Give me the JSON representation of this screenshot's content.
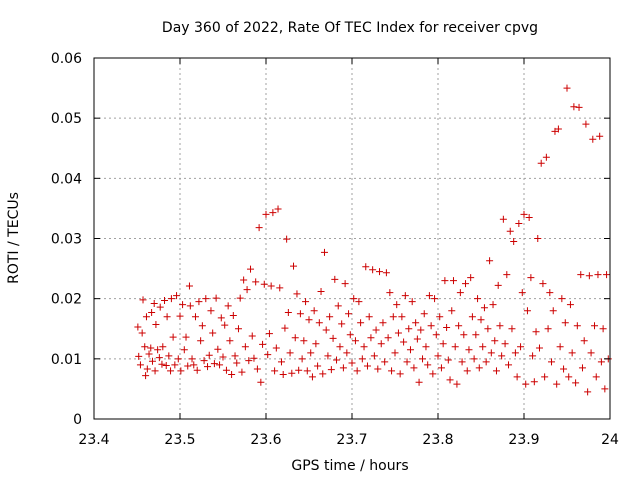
{
  "chart_data": {
    "type": "scatter",
    "title": "Day 360 of 2022, Rate Of TEC Index for receiver cpvg",
    "xlabel": "GPS time / hours",
    "ylabel": "ROTI / TECUs",
    "xlim": [
      23.4,
      24.0
    ],
    "ylim": [
      0,
      0.06
    ],
    "xticks": [
      "23.4",
      "23.5",
      "23.6",
      "23.7",
      "23.8",
      "23.9",
      "24"
    ],
    "yticks": [
      "0",
      "0.01",
      "0.02",
      "0.03",
      "0.04",
      "0.05",
      "0.06"
    ],
    "grid": true,
    "marker": "plus",
    "color": "#cc0000",
    "series": [
      {
        "points": [
          [
            23.451,
            0.0153
          ],
          [
            23.452,
            0.0104
          ],
          [
            23.454,
            0.009
          ],
          [
            23.456,
            0.0143
          ],
          [
            23.457,
            0.0198
          ],
          [
            23.459,
            0.012
          ],
          [
            23.46,
            0.0072
          ],
          [
            23.461,
            0.017
          ],
          [
            23.462,
            0.0083
          ],
          [
            23.464,
            0.0108
          ],
          [
            23.466,
            0.0118
          ],
          [
            23.467,
            0.0177
          ],
          [
            23.468,
            0.0096
          ],
          [
            23.47,
            0.0192
          ],
          [
            23.471,
            0.008
          ],
          [
            23.472,
            0.0157
          ],
          [
            23.474,
            0.0115
          ],
          [
            23.476,
            0.0102
          ],
          [
            23.477,
            0.0186
          ],
          [
            23.479,
            0.0091
          ],
          [
            23.48,
            0.012
          ],
          [
            23.482,
            0.0197
          ],
          [
            23.484,
            0.0089
          ],
          [
            23.485,
            0.017
          ],
          [
            23.487,
            0.0105
          ],
          [
            23.489,
            0.008
          ],
          [
            23.49,
            0.02
          ],
          [
            23.492,
            0.0136
          ],
          [
            23.494,
            0.009
          ],
          [
            23.496,
            0.0205
          ],
          [
            23.498,
            0.01
          ],
          [
            23.5,
            0.0171
          ],
          [
            23.501,
            0.008
          ],
          [
            23.503,
            0.019
          ],
          [
            23.505,
            0.0115
          ],
          [
            23.507,
            0.0136
          ],
          [
            23.509,
            0.0088
          ],
          [
            23.511,
            0.0221
          ],
          [
            23.512,
            0.0188
          ],
          [
            23.514,
            0.01
          ],
          [
            23.516,
            0.009
          ],
          [
            23.518,
            0.017
          ],
          [
            23.52,
            0.0081
          ],
          [
            23.522,
            0.0195
          ],
          [
            23.524,
            0.013
          ],
          [
            23.526,
            0.0155
          ],
          [
            23.528,
            0.0097
          ],
          [
            23.53,
            0.02
          ],
          [
            23.532,
            0.0087
          ],
          [
            23.534,
            0.0106
          ],
          [
            23.536,
            0.018
          ],
          [
            23.538,
            0.0143
          ],
          [
            23.54,
            0.0092
          ],
          [
            23.542,
            0.0201
          ],
          [
            23.544,
            0.0116
          ],
          [
            23.546,
            0.009
          ],
          [
            23.548,
            0.0168
          ],
          [
            23.55,
            0.0103
          ],
          [
            23.552,
            0.0156
          ],
          [
            23.554,
            0.0081
          ],
          [
            23.556,
            0.0188
          ],
          [
            23.558,
            0.013
          ],
          [
            23.56,
            0.0074
          ],
          [
            23.562,
            0.0172
          ],
          [
            23.564,
            0.0105
          ],
          [
            23.566,
            0.0093
          ],
          [
            23.568,
            0.015
          ],
          [
            23.57,
            0.0201
          ],
          [
            23.572,
            0.0078
          ],
          [
            23.574,
            0.0231
          ],
          [
            23.576,
            0.012
          ],
          [
            23.578,
            0.0215
          ],
          [
            23.58,
            0.0097
          ],
          [
            23.582,
            0.0249
          ],
          [
            23.584,
            0.0138
          ],
          [
            23.586,
            0.0101
          ],
          [
            23.588,
            0.0228
          ],
          [
            23.59,
            0.0083
          ],
          [
            23.592,
            0.0318
          ],
          [
            23.594,
            0.0061
          ],
          [
            23.596,
            0.0124
          ],
          [
            23.598,
            0.0224
          ],
          [
            23.6,
            0.034
          ],
          [
            23.602,
            0.0107
          ],
          [
            23.604,
            0.0142
          ],
          [
            23.606,
            0.0221
          ],
          [
            23.608,
            0.0343
          ],
          [
            23.61,
            0.008
          ],
          [
            23.612,
            0.0118
          ],
          [
            23.614,
            0.0349
          ],
          [
            23.616,
            0.0218
          ],
          [
            23.618,
            0.0095
          ],
          [
            23.62,
            0.0074
          ],
          [
            23.622,
            0.0151
          ],
          [
            23.624,
            0.0299
          ],
          [
            23.626,
            0.0177
          ],
          [
            23.628,
            0.011
          ],
          [
            23.63,
            0.0076
          ],
          [
            23.632,
            0.0254
          ],
          [
            23.634,
            0.0135
          ],
          [
            23.636,
            0.0208
          ],
          [
            23.638,
            0.0081
          ],
          [
            23.64,
            0.0175
          ],
          [
            23.642,
            0.01
          ],
          [
            23.644,
            0.013
          ],
          [
            23.646,
            0.0195
          ],
          [
            23.648,
            0.008
          ],
          [
            23.65,
            0.0165
          ],
          [
            23.652,
            0.011
          ],
          [
            23.654,
            0.007
          ],
          [
            23.656,
            0.018
          ],
          [
            23.658,
            0.0125
          ],
          [
            23.66,
            0.0088
          ],
          [
            23.662,
            0.016
          ],
          [
            23.664,
            0.0212
          ],
          [
            23.666,
            0.0075
          ],
          [
            23.668,
            0.0277
          ],
          [
            23.67,
            0.0148
          ],
          [
            23.672,
            0.0105
          ],
          [
            23.674,
            0.017
          ],
          [
            23.676,
            0.0082
          ],
          [
            23.678,
            0.0134
          ],
          [
            23.68,
            0.0232
          ],
          [
            23.682,
            0.0098
          ],
          [
            23.684,
            0.0188
          ],
          [
            23.686,
            0.012
          ],
          [
            23.688,
            0.0158
          ],
          [
            23.69,
            0.0085
          ],
          [
            23.692,
            0.0225
          ],
          [
            23.694,
            0.011
          ],
          [
            23.696,
            0.0175
          ],
          [
            23.698,
            0.014
          ],
          [
            23.7,
            0.0093
          ],
          [
            23.702,
            0.02
          ],
          [
            23.704,
            0.013
          ],
          [
            23.706,
            0.008
          ],
          [
            23.708,
            0.0195
          ],
          [
            23.71,
            0.016
          ],
          [
            23.712,
            0.01
          ],
          [
            23.714,
            0.012
          ],
          [
            23.716,
            0.0253
          ],
          [
            23.718,
            0.0088
          ],
          [
            23.72,
            0.017
          ],
          [
            23.722,
            0.0135
          ],
          [
            23.724,
            0.0248
          ],
          [
            23.726,
            0.0105
          ],
          [
            23.728,
            0.0148
          ],
          [
            23.73,
            0.0083
          ],
          [
            23.732,
            0.0245
          ],
          [
            23.734,
            0.0125
          ],
          [
            23.736,
            0.016
          ],
          [
            23.738,
            0.0095
          ],
          [
            23.74,
            0.0243
          ],
          [
            23.742,
            0.0135
          ],
          [
            23.744,
            0.021
          ],
          [
            23.746,
            0.008
          ],
          [
            23.748,
            0.017
          ],
          [
            23.75,
            0.011
          ],
          [
            23.752,
            0.019
          ],
          [
            23.754,
            0.0143
          ],
          [
            23.756,
            0.0075
          ],
          [
            23.758,
            0.017
          ],
          [
            23.76,
            0.0128
          ],
          [
            23.762,
            0.0205
          ],
          [
            23.764,
            0.0095
          ],
          [
            23.766,
            0.015
          ],
          [
            23.768,
            0.0115
          ],
          [
            23.77,
            0.0195
          ],
          [
            23.772,
            0.0085
          ],
          [
            23.774,
            0.016
          ],
          [
            23.776,
            0.0133
          ],
          [
            23.778,
            0.0061
          ],
          [
            23.78,
            0.0148
          ],
          [
            23.782,
            0.01
          ],
          [
            23.784,
            0.0175
          ],
          [
            23.786,
            0.012
          ],
          [
            23.788,
            0.009
          ],
          [
            23.79,
            0.0205
          ],
          [
            23.792,
            0.0155
          ],
          [
            23.794,
            0.0075
          ],
          [
            23.796,
            0.02
          ],
          [
            23.798,
            0.014
          ],
          [
            23.8,
            0.0105
          ],
          [
            23.802,
            0.017
          ],
          [
            23.804,
            0.0085
          ],
          [
            23.806,
            0.0125
          ],
          [
            23.808,
            0.023
          ],
          [
            23.81,
            0.0152
          ],
          [
            23.812,
            0.0098
          ],
          [
            23.814,
            0.0065
          ],
          [
            23.816,
            0.018
          ],
          [
            23.818,
            0.023
          ],
          [
            23.82,
            0.012
          ],
          [
            23.822,
            0.0058
          ],
          [
            23.824,
            0.0155
          ],
          [
            23.826,
            0.021
          ],
          [
            23.828,
            0.0095
          ],
          [
            23.83,
            0.014
          ],
          [
            23.832,
            0.0225
          ],
          [
            23.834,
            0.008
          ],
          [
            23.836,
            0.0115
          ],
          [
            23.838,
            0.0235
          ],
          [
            23.84,
            0.017
          ],
          [
            23.842,
            0.01
          ],
          [
            23.844,
            0.014
          ],
          [
            23.846,
            0.02
          ],
          [
            23.848,
            0.0085
          ],
          [
            23.85,
            0.0165
          ],
          [
            23.852,
            0.012
          ],
          [
            23.854,
            0.0185
          ],
          [
            23.856,
            0.0095
          ],
          [
            23.858,
            0.015
          ],
          [
            23.86,
            0.0263
          ],
          [
            23.862,
            0.011
          ],
          [
            23.864,
            0.019
          ],
          [
            23.866,
            0.013
          ],
          [
            23.868,
            0.008
          ],
          [
            23.87,
            0.0222
          ],
          [
            23.872,
            0.0155
          ],
          [
            23.874,
            0.0105
          ],
          [
            23.876,
            0.0332
          ],
          [
            23.878,
            0.0125
          ],
          [
            23.88,
            0.024
          ],
          [
            23.882,
            0.009
          ],
          [
            23.884,
            0.0312
          ],
          [
            23.886,
            0.015
          ],
          [
            23.888,
            0.0295
          ],
          [
            23.89,
            0.011
          ],
          [
            23.892,
            0.007
          ],
          [
            23.894,
            0.0325
          ],
          [
            23.896,
            0.012
          ],
          [
            23.898,
            0.021
          ],
          [
            23.9,
            0.034
          ],
          [
            23.902,
            0.0058
          ],
          [
            23.904,
            0.018
          ],
          [
            23.906,
            0.0335
          ],
          [
            23.908,
            0.0235
          ],
          [
            23.91,
            0.0105
          ],
          [
            23.912,
            0.0062
          ],
          [
            23.914,
            0.0145
          ],
          [
            23.916,
            0.03
          ],
          [
            23.918,
            0.0118
          ],
          [
            23.92,
            0.0425
          ],
          [
            23.922,
            0.0225
          ],
          [
            23.924,
            0.007
          ],
          [
            23.926,
            0.0435
          ],
          [
            23.928,
            0.015
          ],
          [
            23.93,
            0.021
          ],
          [
            23.932,
            0.0095
          ],
          [
            23.934,
            0.018
          ],
          [
            23.936,
            0.0478
          ],
          [
            23.938,
            0.0058
          ],
          [
            23.94,
            0.0482
          ],
          [
            23.942,
            0.012
          ],
          [
            23.944,
            0.02
          ],
          [
            23.946,
            0.0083
          ],
          [
            23.948,
            0.016
          ],
          [
            23.95,
            0.055
          ],
          [
            23.952,
            0.007
          ],
          [
            23.954,
            0.019
          ],
          [
            23.956,
            0.011
          ],
          [
            23.958,
            0.0519
          ],
          [
            23.96,
            0.006
          ],
          [
            23.962,
            0.0155
          ],
          [
            23.964,
            0.0518
          ],
          [
            23.966,
            0.024
          ],
          [
            23.968,
            0.0085
          ],
          [
            23.97,
            0.013
          ],
          [
            23.972,
            0.049
          ],
          [
            23.974,
            0.0045
          ],
          [
            23.976,
            0.0238
          ],
          [
            23.978,
            0.011
          ],
          [
            23.98,
            0.0465
          ],
          [
            23.982,
            0.0155
          ],
          [
            23.984,
            0.007
          ],
          [
            23.986,
            0.024
          ],
          [
            23.988,
            0.047
          ],
          [
            23.99,
            0.0095
          ],
          [
            23.992,
            0.015
          ],
          [
            23.994,
            0.005
          ],
          [
            23.996,
            0.024
          ],
          [
            23.998,
            0.01
          ]
        ]
      }
    ]
  }
}
